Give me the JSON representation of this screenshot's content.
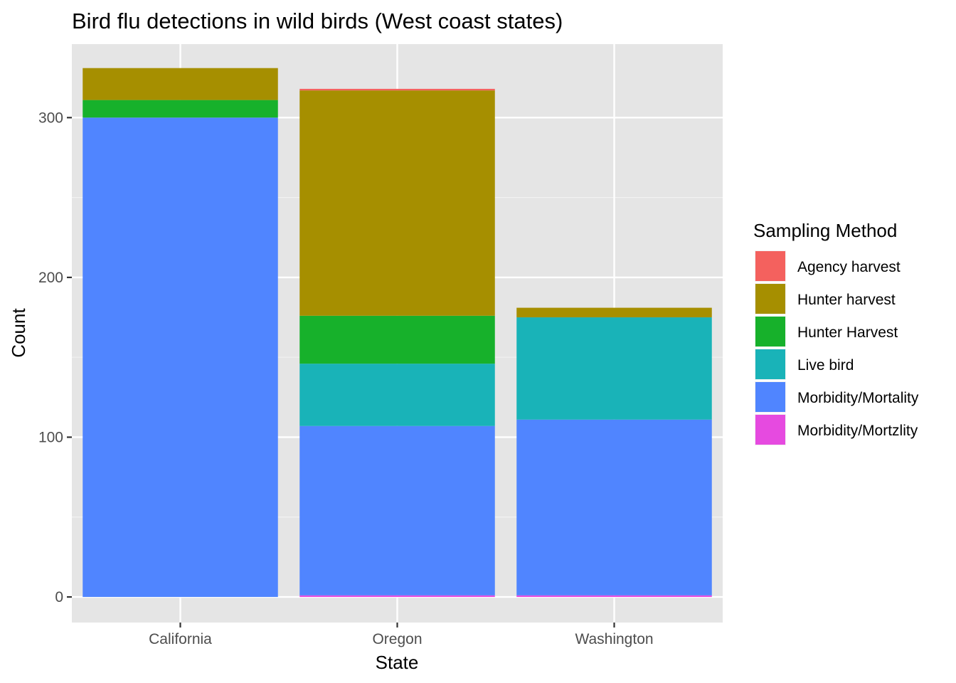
{
  "chart_data": {
    "type": "bar",
    "stacked": true,
    "title": "Bird flu detections in wild birds (West coast states)",
    "xlabel": "State",
    "ylabel": "Count",
    "categories": [
      "California",
      "Oregon",
      "Washington"
    ],
    "y_ticks": [
      0,
      100,
      200,
      300
    ],
    "ylim": [
      -16,
      346
    ],
    "grid": true,
    "legend": {
      "title": "Sampling Method",
      "position": "right"
    },
    "series": [
      {
        "name": "Morbidity/Mortzlity",
        "color": "#E64AE0",
        "values": [
          0,
          1,
          1
        ]
      },
      {
        "name": "Morbidity/Mortality",
        "color": "#5085FF",
        "values": [
          300,
          106,
          110
        ]
      },
      {
        "name": "Live bird",
        "color": "#19B3B8",
        "values": [
          0,
          39,
          64
        ]
      },
      {
        "name": "Hunter Harvest",
        "color": "#17B12B",
        "values": [
          11,
          30,
          0
        ]
      },
      {
        "name": "Hunter harvest",
        "color": "#A68F00",
        "values": [
          20,
          141,
          6
        ]
      },
      {
        "name": "Agency harvest",
        "color": "#F4615E",
        "values": [
          0,
          1,
          0
        ]
      }
    ],
    "legend_order": [
      "Agency harvest",
      "Hunter harvest",
      "Hunter Harvest",
      "Live bird",
      "Morbidity/Mortality",
      "Morbidity/Mortzlity"
    ]
  }
}
